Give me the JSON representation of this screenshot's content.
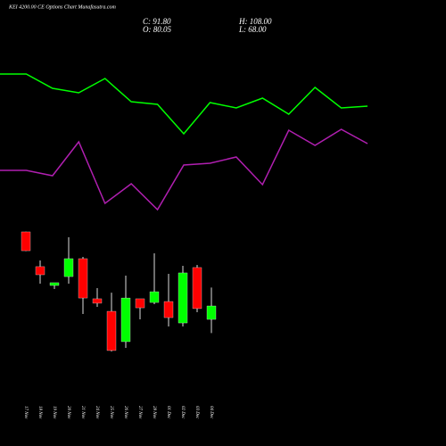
{
  "chart_data": [
    {
      "type": "candlestick",
      "title": "KEI 4200.00 CE Options Chart Munafasutra.com",
      "annotations": [
        "C: 91.80",
        "H: 108.00",
        "O: 80.05",
        "L: 68.00"
      ],
      "categories": [
        "17 Nov",
        "18 Nov",
        "19 Nov",
        "20 Nov",
        "21 Nov",
        "24 Nov",
        "25 Nov",
        "26 Nov",
        "27 Nov",
        "28 Nov",
        "01 Dec",
        "02 Dec",
        "03 Dec",
        "04 Dec"
      ],
      "open": [
        156.8,
        126.3,
        109.8,
        117.6,
        133.3,
        98.1,
        87.1,
        60.5,
        98.1,
        94.9,
        95.7,
        76.9,
        125.5,
        80.05
      ],
      "high": [
        157,
        131.7,
        112.2,
        152.1,
        134.9,
        107.5,
        103.5,
        118.4,
        98.1,
        138,
        120,
        127,
        127.8,
        108
      ],
      "low": [
        140,
        111.4,
        106.7,
        111.4,
        84.8,
        91,
        51.9,
        55,
        80.1,
        93.4,
        73.8,
        73.8,
        86.3,
        68
      ],
      "close": [
        140.3,
        119.2,
        112.2,
        133.3,
        98.8,
        94.2,
        52.7,
        98.8,
        90.2,
        104.3,
        81.6,
        120.8,
        89.5,
        91.8
      ],
      "up_color": "#00ff00",
      "down_color": "#ff0000",
      "ylim": [
        45,
        165
      ]
    },
    {
      "type": "line",
      "x": [
        0,
        1,
        2,
        3,
        4,
        5,
        6,
        7,
        8,
        9,
        10,
        11,
        12,
        13,
        14
      ],
      "xlim": [
        0,
        14
      ],
      "ylim": [
        0,
        100
      ],
      "series": [
        {
          "color": "#00ff00",
          "values": [
            83.5,
            83.5,
            75.5,
            73,
            81,
            68,
            66.5,
            50,
            67.5,
            64.5,
            70,
            61,
            76,
            64.5,
            65.5
          ]
        },
        {
          "color": "#b01fb0",
          "values": [
            29.5,
            29.5,
            26.5,
            45.5,
            11,
            22,
            7.5,
            32.5,
            33.5,
            37,
            21.5,
            52,
            43.5,
            52.5,
            44.5
          ]
        }
      ]
    }
  ]
}
